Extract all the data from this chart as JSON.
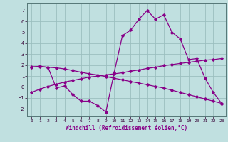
{
  "xlabel": "Windchill (Refroidissement éolien,°C)",
  "background_color": "#c0e0e0",
  "grid_color": "#9bbfbf",
  "line_color": "#880088",
  "xlim": [
    -0.5,
    23.5
  ],
  "ylim": [
    -2.7,
    7.7
  ],
  "yticks": [
    -2,
    -1,
    0,
    1,
    2,
    3,
    4,
    5,
    6,
    7
  ],
  "xticks": [
    0,
    1,
    2,
    3,
    4,
    5,
    6,
    7,
    8,
    9,
    10,
    11,
    12,
    13,
    14,
    15,
    16,
    17,
    18,
    19,
    20,
    21,
    22,
    23
  ],
  "series1_x": [
    0,
    1,
    2,
    3,
    4,
    5,
    6,
    7,
    8,
    9,
    10,
    11,
    12,
    13,
    14,
    15,
    16,
    17,
    18,
    19,
    20,
    21,
    22,
    23
  ],
  "series1_y": [
    1.8,
    1.9,
    1.8,
    -0.1,
    0.1,
    -0.7,
    -1.3,
    -1.3,
    -1.7,
    -2.3,
    1.3,
    4.7,
    5.2,
    6.2,
    7.0,
    6.2,
    6.6,
    5.0,
    4.4,
    2.5,
    2.6,
    0.8,
    -0.5,
    -1.5
  ],
  "series2_x": [
    0,
    1,
    2,
    3,
    4,
    5,
    6,
    7,
    8,
    9,
    10,
    11,
    12,
    13,
    14,
    15,
    16,
    17,
    18,
    19,
    20,
    21,
    22,
    23
  ],
  "series2_y": [
    -0.5,
    -0.2,
    0.05,
    0.25,
    0.45,
    0.6,
    0.75,
    0.9,
    1.0,
    1.1,
    1.2,
    1.3,
    1.45,
    1.55,
    1.7,
    1.8,
    1.95,
    2.05,
    2.15,
    2.25,
    2.35,
    2.45,
    2.5,
    2.6
  ],
  "series3_x": [
    0,
    1,
    2,
    3,
    4,
    5,
    6,
    7,
    8,
    9,
    10,
    11,
    12,
    13,
    14,
    15,
    16,
    17,
    18,
    19,
    20,
    21,
    22,
    23
  ],
  "series3_y": [
    1.85,
    1.85,
    1.8,
    1.75,
    1.65,
    1.5,
    1.35,
    1.2,
    1.1,
    0.95,
    0.8,
    0.65,
    0.5,
    0.35,
    0.2,
    0.05,
    -0.1,
    -0.3,
    -0.5,
    -0.7,
    -0.9,
    -1.1,
    -1.3,
    -1.5
  ]
}
